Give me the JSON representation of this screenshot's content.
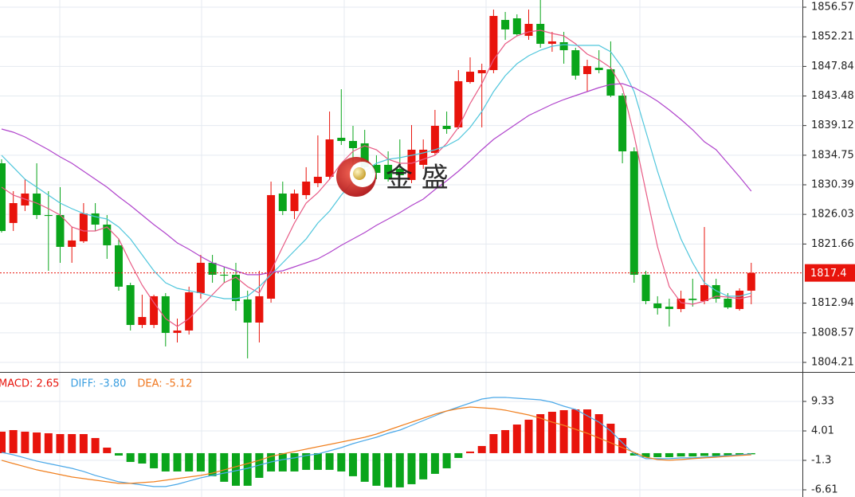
{
  "chart_data": [
    {
      "type": "candlestick",
      "watermark": "金 盛",
      "up_color": "#e8140c",
      "down_color": "#0aa51b",
      "open": [
        1833.56,
        1824.76,
        1827.34,
        1829.1,
        1825.93,
        1825.93,
        1821.24,
        1822.06,
        1826.17,
        1824.52,
        1821.47,
        1815.6,
        1809.73,
        1809.73,
        1813.96,
        1808.56,
        1808.91,
        1814.43,
        1818.89,
        1817.13,
        1817.13,
        1813.49,
        1810.08,
        1813.6,
        1829.1,
        1826.52,
        1828.87,
        1830.63,
        1831.57,
        1837.32,
        1836.85,
        1836.5,
        1833.33,
        1833.33,
        1832.74,
        1831.1,
        1833.33,
        1835.09,
        1839.08,
        1838.85,
        1845.54,
        1846.83,
        1847.3,
        1854.69,
        1854.93,
        1852.35,
        1854.11,
        1851.17,
        1851.41,
        1850.23,
        1846.71,
        1847.65,
        1847.42,
        1843.54,
        1835.32,
        1817.13,
        1812.9,
        1812.43,
        1812.08,
        1813.6,
        1813.25,
        1815.6,
        1813.6,
        1812.08,
        1814.78
      ],
      "high": [
        1834.15,
        1829.45,
        1831.21,
        1833.56,
        1829.45,
        1830.04,
        1824.17,
        1827.69,
        1827.69,
        1825.93,
        1822.41,
        1815.95,
        1814.19,
        1814.19,
        1814.43,
        1810.67,
        1815.37,
        1820.06,
        1820.06,
        1818.3,
        1818.89,
        1814.78,
        1817.71,
        1830.86,
        1830.86,
        1829.69,
        1832.98,
        1837.67,
        1841.19,
        1844.48,
        1839.08,
        1838.49,
        1834.74,
        1835.32,
        1837.08,
        1839.2,
        1837.08,
        1841.43,
        1841.19,
        1847.3,
        1849.18,
        1848.24,
        1856.22,
        1855.87,
        1855.52,
        1856.22,
        1857.63,
        1852.93,
        1852.93,
        1850.59,
        1848.82,
        1850.23,
        1851.53,
        1843.89,
        1835.91,
        1817.71,
        1813.96,
        1813.6,
        1814.78,
        1816.54,
        1824.17,
        1816.54,
        1814.43,
        1815.13,
        1818.89
      ],
      "low": [
        1823.35,
        1823.58,
        1826.52,
        1825.34,
        1817.71,
        1818.89,
        1818.89,
        1821.82,
        1823.58,
        1819.47,
        1814.78,
        1808.91,
        1809.26,
        1809.26,
        1806.56,
        1807.15,
        1808.32,
        1813.6,
        1815.95,
        1815.95,
        1811.84,
        1804.8,
        1807.15,
        1813.02,
        1825.93,
        1825.34,
        1828.28,
        1830.04,
        1831.1,
        1836.26,
        1833.21,
        1831.57,
        1831.21,
        1830.86,
        1830.98,
        1830.63,
        1832.74,
        1834.74,
        1837.91,
        1838.61,
        1845.3,
        1838.85,
        1846.83,
        1851.76,
        1852.35,
        1851.76,
        1850.59,
        1850.0,
        1848.24,
        1845.89,
        1844.13,
        1846.83,
        1843.31,
        1833.56,
        1815.95,
        1812.78,
        1811.26,
        1809.5,
        1811.61,
        1812.43,
        1812.78,
        1813.02,
        1812.08,
        1811.84,
        1812.78
      ],
      "close": [
        1823.58,
        1827.69,
        1829.1,
        1825.93,
        1825.8,
        1821.24,
        1822.18,
        1826.17,
        1824.52,
        1821.47,
        1815.37,
        1809.73,
        1810.9,
        1813.96,
        1808.56,
        1808.91,
        1814.54,
        1818.89,
        1817.13,
        1817.0,
        1813.25,
        1810.08,
        1813.96,
        1828.87,
        1826.52,
        1829.1,
        1830.86,
        1831.57,
        1837.08,
        1836.85,
        1835.79,
        1832.98,
        1832.15,
        1831.21,
        1831.8,
        1835.56,
        1835.56,
        1839.08,
        1838.61,
        1845.66,
        1847.06,
        1847.3,
        1855.28,
        1853.29,
        1852.58,
        1854.11,
        1851.17,
        1851.53,
        1850.23,
        1846.48,
        1847.89,
        1847.3,
        1843.54,
        1835.32,
        1817.13,
        1813.25,
        1812.2,
        1812.08,
        1813.6,
        1813.4,
        1815.6,
        1813.6,
        1812.31,
        1814.78,
        1817.4
      ],
      "series": [
        {
          "color": "#e85a84",
          "values": [
            1830.04,
            1828.87,
            1828.28,
            1827.69,
            1826.87,
            1825.93,
            1824.17,
            1823.58,
            1823.58,
            1824.17,
            1822.41,
            1818.89,
            1815.6,
            1813.02,
            1810.67,
            1809.5,
            1810.67,
            1812.43,
            1814.19,
            1815.95,
            1816.77,
            1815.37,
            1814.43,
            1817.71,
            1821.24,
            1824.76,
            1827.69,
            1829.22,
            1831.21,
            1833.56,
            1835.32,
            1836.15,
            1835.56,
            1834.15,
            1833.56,
            1833.56,
            1834.15,
            1834.74,
            1836.5,
            1838.85,
            1842.37,
            1845.3,
            1848.82,
            1851.17,
            1852.35,
            1852.93,
            1853.17,
            1852.7,
            1852.35,
            1851.17,
            1849.65,
            1848.82,
            1847.65,
            1844.72,
            1837.67,
            1829.45,
            1821.24,
            1815.37,
            1813.02,
            1812.78,
            1813.25,
            1813.96,
            1813.84,
            1813.6,
            1813.96
          ]
        },
        {
          "color": "#4fc6dc",
          "values": [
            1834.74,
            1832.98,
            1831.21,
            1830.04,
            1828.87,
            1827.69,
            1826.87,
            1826.17,
            1825.7,
            1825.34,
            1824.17,
            1822.41,
            1820.06,
            1817.71,
            1815.95,
            1815.13,
            1814.78,
            1814.43,
            1813.96,
            1813.6,
            1813.6,
            1813.96,
            1815.37,
            1817.13,
            1818.89,
            1820.65,
            1822.41,
            1824.76,
            1826.52,
            1828.87,
            1830.86,
            1832.39,
            1833.56,
            1834.15,
            1834.38,
            1834.74,
            1835.09,
            1835.56,
            1836.15,
            1837.08,
            1838.85,
            1841.19,
            1844.13,
            1846.48,
            1848.24,
            1849.41,
            1850.23,
            1850.82,
            1851.06,
            1850.94,
            1850.94,
            1850.94,
            1850.0,
            1847.65,
            1844.13,
            1838.26,
            1832.39,
            1827.11,
            1822.41,
            1818.89,
            1815.95,
            1814.78,
            1813.96,
            1813.96,
            1814.43
          ]
        },
        {
          "color": "#b044cc",
          "values": [
            1838.61,
            1838.14,
            1837.44,
            1836.5,
            1835.56,
            1834.5,
            1833.56,
            1832.39,
            1831.21,
            1830.04,
            1828.63,
            1827.34,
            1825.93,
            1824.52,
            1823.23,
            1821.82,
            1820.88,
            1819.83,
            1818.89,
            1818.3,
            1817.71,
            1817.13,
            1817.13,
            1817.48,
            1817.71,
            1818.3,
            1818.89,
            1819.47,
            1820.41,
            1821.47,
            1822.41,
            1823.35,
            1824.41,
            1825.34,
            1826.28,
            1827.34,
            1828.28,
            1829.69,
            1830.98,
            1832.39,
            1833.92,
            1835.56,
            1837.08,
            1838.26,
            1839.43,
            1840.61,
            1841.43,
            1842.25,
            1842.95,
            1843.54,
            1844.13,
            1844.72,
            1845.19,
            1845.3,
            1844.72,
            1843.78,
            1842.72,
            1841.43,
            1840.02,
            1838.49,
            1836.73,
            1835.56,
            1833.56,
            1831.57,
            1829.45
          ]
        }
      ],
      "current_price": 1817.4,
      "current_price_color": "#e8140c",
      "ylim": [
        1802.8,
        1857.63
      ],
      "yticks": [
        1804.21,
        1808.57,
        1812.94,
        1821.66,
        1826.03,
        1830.39,
        1834.75,
        1839.12,
        1843.48,
        1847.84,
        1852.21,
        1856.57
      ],
      "grid": true
    },
    {
      "type": "macd",
      "legend": [
        {
          "label": "MACD: 2.65",
          "color": "#e8140c"
        },
        {
          "label": "DIFF: -3.80",
          "color": "#3a9ee0"
        },
        {
          "label": "DEA: -5.12",
          "color": "#f07820"
        }
      ],
      "up_color": "#e8140c",
      "down_color": "#0aa51b",
      "values": [
        3.87,
        4.16,
        3.87,
        3.73,
        3.59,
        3.44,
        3.44,
        3.44,
        2.73,
        1.0,
        -0.43,
        -1.58,
        -1.87,
        -2.73,
        -3.3,
        -3.3,
        -3.3,
        -3.3,
        -4.16,
        -5.16,
        -5.88,
        -5.88,
        -4.45,
        -3.3,
        -3.3,
        -3.3,
        -3.01,
        -3.01,
        -3.01,
        -3.3,
        -4.16,
        -5.16,
        -5.88,
        -6.17,
        -6.17,
        -5.6,
        -4.73,
        -3.73,
        -2.73,
        -0.86,
        0.29,
        1.29,
        3.44,
        4.16,
        5.16,
        6.03,
        7.03,
        7.46,
        7.75,
        7.89,
        7.89,
        7.03,
        5.31,
        2.73,
        -0.43,
        -0.72,
        -0.72,
        -0.72,
        -0.6,
        -0.6,
        -0.5,
        -0.5,
        -0.45,
        -0.3,
        -0.2
      ],
      "series": [
        {
          "color": "#4aa8e8",
          "values": [
            0.14,
            -0.29,
            -0.86,
            -1.43,
            -1.87,
            -2.3,
            -2.73,
            -3.3,
            -4.02,
            -4.59,
            -5.16,
            -5.45,
            -5.74,
            -6.03,
            -6.03,
            -5.6,
            -5.02,
            -4.45,
            -4.02,
            -3.59,
            -3.16,
            -2.73,
            -2.15,
            -1.58,
            -1.15,
            -0.86,
            -0.43,
            -0.14,
            0.43,
            1.0,
            1.72,
            2.3,
            2.87,
            3.59,
            4.16,
            5.02,
            5.88,
            6.74,
            7.6,
            8.32,
            9.04,
            9.76,
            10.04,
            10.04,
            9.9,
            9.76,
            9.61,
            9.18,
            8.46,
            7.89,
            6.74,
            5.6,
            4.02,
            1.87,
            -0.14,
            -1.0,
            -1.0,
            -1.0,
            -0.86,
            -0.86,
            -0.72,
            -0.57,
            -0.43,
            -0.29,
            -0.14
          ]
        },
        {
          "color": "#f08020",
          "values": [
            -1.29,
            -1.87,
            -2.44,
            -3.01,
            -3.44,
            -3.87,
            -4.3,
            -4.59,
            -4.88,
            -5.16,
            -5.45,
            -5.45,
            -5.31,
            -5.16,
            -4.88,
            -4.59,
            -4.3,
            -4.02,
            -3.59,
            -3.01,
            -2.44,
            -1.87,
            -1.29,
            -0.57,
            -0.14,
            0.29,
            0.72,
            1.15,
            1.58,
            2.01,
            2.44,
            2.87,
            3.44,
            4.16,
            4.88,
            5.6,
            6.31,
            7.03,
            7.6,
            8.03,
            8.32,
            8.18,
            8.03,
            7.75,
            7.32,
            6.89,
            6.31,
            5.6,
            5.02,
            4.3,
            3.59,
            2.73,
            1.87,
            1.0,
            0.14,
            -0.72,
            -1.15,
            -1.29,
            -1.15,
            -1.0,
            -0.86,
            -0.72,
            -0.57,
            -0.43,
            -0.29
          ]
        }
      ],
      "ylim": [
        -7.33,
        14.21
      ],
      "yticks": [
        -6.61,
        -1.3,
        4.01,
        9.33
      ],
      "grid": true
    }
  ]
}
